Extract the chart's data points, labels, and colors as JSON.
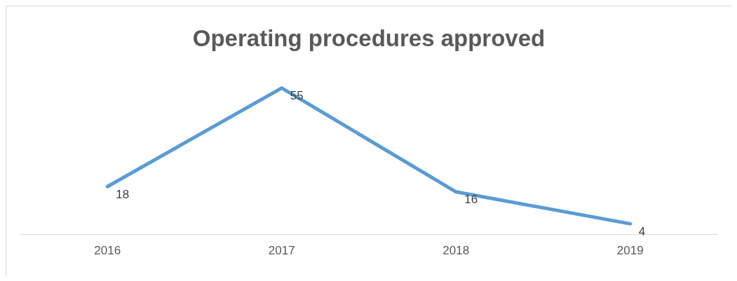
{
  "chart_data": {
    "type": "line",
    "title": "Operating procedures approved",
    "categories": [
      "2016",
      "2017",
      "2018",
      "2019"
    ],
    "series": [
      {
        "color": "#5b9bd5",
        "values": [
          18,
          55,
          16,
          4
        ]
      }
    ],
    "data_labels": true,
    "legend": false,
    "marker": "none",
    "tick_labels": "x"
  }
}
